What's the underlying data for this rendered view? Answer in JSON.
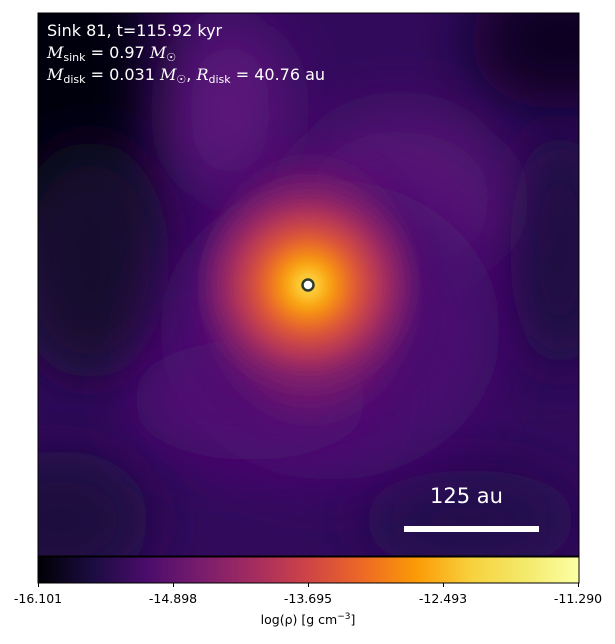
{
  "annotation": {
    "line1": "Sink 81, t=115.92 kyr",
    "msink_symbol": "M",
    "msink_sub": "sink",
    "msink_value": " = 0.97 ",
    "msun": "M",
    "mdisk_symbol": "M",
    "mdisk_sub": "disk",
    "mdisk_value": " = 0.031 ",
    "rdisk_symbol": "R",
    "rdisk_sub": "disk",
    "rdisk_value": " = 40.76 au"
  },
  "scale_bar": {
    "label": "125 au"
  },
  "colorbar": {
    "ticks": [
      "-16.101",
      "-14.898",
      "-13.695",
      "-12.493",
      "-11.290"
    ],
    "label_prefix": "log(ρ) [g cm",
    "label_exp": "−3",
    "label_suffix": "]",
    "colormap": "inferno"
  },
  "colors": {
    "sink_marker": "#2e3a2a",
    "scale_bar": "#ffffff"
  }
}
